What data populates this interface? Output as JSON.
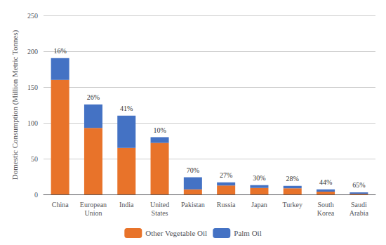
{
  "chart_data": {
    "type": "bar",
    "stacked": true,
    "categories": [
      "China",
      "European\nUnion",
      "India",
      "United\nStates",
      "Pakistan",
      "Russia",
      "Japan",
      "Turkey",
      "South\nKorea",
      "Saudi\nArabia"
    ],
    "series": [
      {
        "name": "Other Vegetable Oil",
        "color": "#E8732A",
        "values": [
          160,
          93,
          65,
          72,
          7.2,
          12.4,
          9.1,
          8.6,
          3.9,
          1.05
        ]
      },
      {
        "name": "Palm Oil",
        "color": "#4472C4",
        "values": [
          30.4,
          32.8,
          45.1,
          8.0,
          16.8,
          4.6,
          3.9,
          3.4,
          3.1,
          1.95
        ]
      }
    ],
    "annotations": [
      "16%",
      "26%",
      "41%",
      "10%",
      "70%",
      "27%",
      "30%",
      "28%",
      "44%",
      "65%"
    ],
    "ylabel": "Domestic Consumption (Million Metric Tonnes)",
    "ylim": [
      0,
      250
    ],
    "yticks": [
      0,
      50,
      100,
      150,
      200,
      250
    ],
    "grid": true,
    "legend": "bottom"
  }
}
